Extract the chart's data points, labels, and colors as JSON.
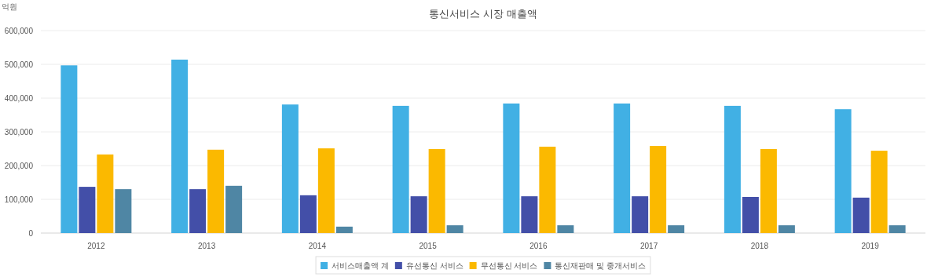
{
  "chart_data": {
    "type": "bar",
    "title": "통신서비스 시장  매출액",
    "ylabel": "억원",
    "categories": [
      "2012",
      "2013",
      "2014",
      "2015",
      "2016",
      "2017",
      "2018",
      "2019"
    ],
    "series": [
      {
        "name": "서비스매출액 계",
        "color": "#41b0e4",
        "values": [
          497000,
          514000,
          381000,
          377000,
          384000,
          384000,
          377000,
          367000
        ]
      },
      {
        "name": "유선통신 서비스",
        "color": "#434fa8",
        "values": [
          137000,
          130000,
          112000,
          109000,
          109000,
          109000,
          107000,
          105000
        ]
      },
      {
        "name": "무선통신 서비스",
        "color": "#fbb900",
        "values": [
          233000,
          247000,
          251000,
          249000,
          256000,
          258000,
          249000,
          244000
        ]
      },
      {
        "name": "통신재판매 및 중개서비스",
        "color": "#4f86a4",
        "values": [
          130000,
          140000,
          19000,
          23000,
          23000,
          23000,
          23000,
          23000
        ]
      }
    ],
    "ylim": [
      0,
      600000
    ],
    "yticks": [
      {
        "value": 0,
        "label": "0"
      },
      {
        "value": 100000,
        "label": "100,000"
      },
      {
        "value": 200000,
        "label": "200,000"
      },
      {
        "value": 300000,
        "label": "300,000"
      },
      {
        "value": 400000,
        "label": "400,000"
      },
      {
        "value": 500000,
        "label": "500,000"
      },
      {
        "value": 600000,
        "label": "600,000"
      }
    ],
    "grid": "y",
    "legend": "bottom"
  }
}
